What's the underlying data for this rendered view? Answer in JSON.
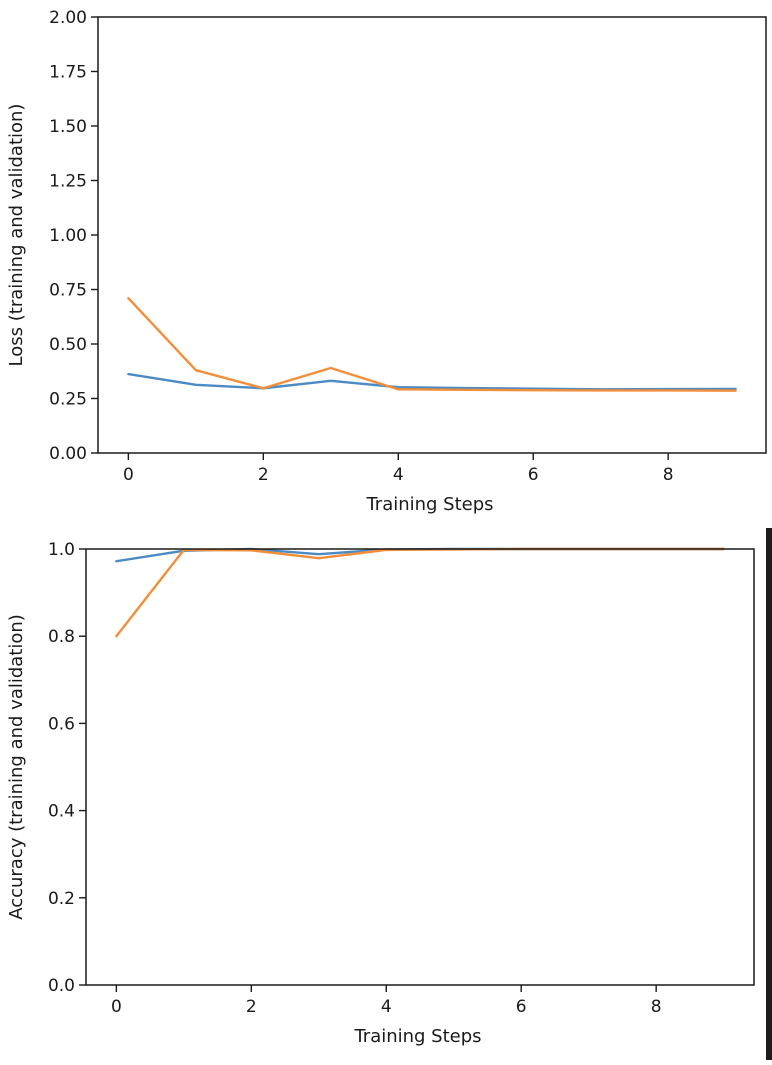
{
  "chart_data": [
    {
      "type": "line",
      "title": "",
      "xlabel": "Training Steps",
      "ylabel": "Loss (training and validation)",
      "xlim": [
        -0.45,
        9.45
      ],
      "ylim": [
        0,
        2.0
      ],
      "xticks": [
        0,
        2,
        4,
        6,
        8
      ],
      "xtick_labels": [
        "0",
        "2",
        "4",
        "6",
        "8"
      ],
      "yticks": [
        0,
        0.25,
        0.5,
        0.75,
        1.0,
        1.25,
        1.5,
        1.75,
        2.0
      ],
      "ytick_labels": [
        "0.00",
        "0.25",
        "0.50",
        "0.75",
        "1.00",
        "1.25",
        "1.50",
        "1.75",
        "2.00"
      ],
      "grid": false,
      "x": [
        0,
        1,
        2,
        3,
        4,
        5,
        6,
        7,
        8,
        9
      ],
      "series": [
        {
          "color": "#4c8ac4",
          "values": [
            0.362,
            0.313,
            0.297,
            0.331,
            0.302,
            0.298,
            0.295,
            0.292,
            0.293,
            0.294
          ]
        },
        {
          "color": "#f28e3a",
          "values": [
            0.71,
            0.38,
            0.297,
            0.39,
            0.292,
            0.29,
            0.288,
            0.287,
            0.287,
            0.286
          ]
        }
      ]
    },
    {
      "type": "line",
      "title": "",
      "xlabel": "Training Steps",
      "ylabel": "Accuracy (training and validation)",
      "xlim": [
        -0.45,
        9.45
      ],
      "ylim": [
        0,
        1.0
      ],
      "xticks": [
        0,
        2,
        4,
        6,
        8
      ],
      "xtick_labels": [
        "0",
        "2",
        "4",
        "6",
        "8"
      ],
      "yticks": [
        0,
        0.2,
        0.4,
        0.6,
        0.8,
        1.0
      ],
      "ytick_labels": [
        "0.0",
        "0.2",
        "0.4",
        "0.6",
        "0.8",
        "1.0"
      ],
      "grid": false,
      "x": [
        0,
        1,
        2,
        3,
        4,
        5,
        6,
        7,
        8,
        9
      ],
      "series": [
        {
          "color": "#4c8ac4",
          "values": [
            0.972,
            0.996,
            1.0,
            0.988,
            0.999,
            1.0,
            1.0,
            1.0,
            1.0,
            1.0
          ]
        },
        {
          "color": "#f28e3a",
          "values": [
            0.8,
            0.998,
            0.997,
            0.979,
            0.998,
            0.999,
            1.0,
            1.0,
            1.0,
            1.0
          ]
        }
      ]
    }
  ]
}
